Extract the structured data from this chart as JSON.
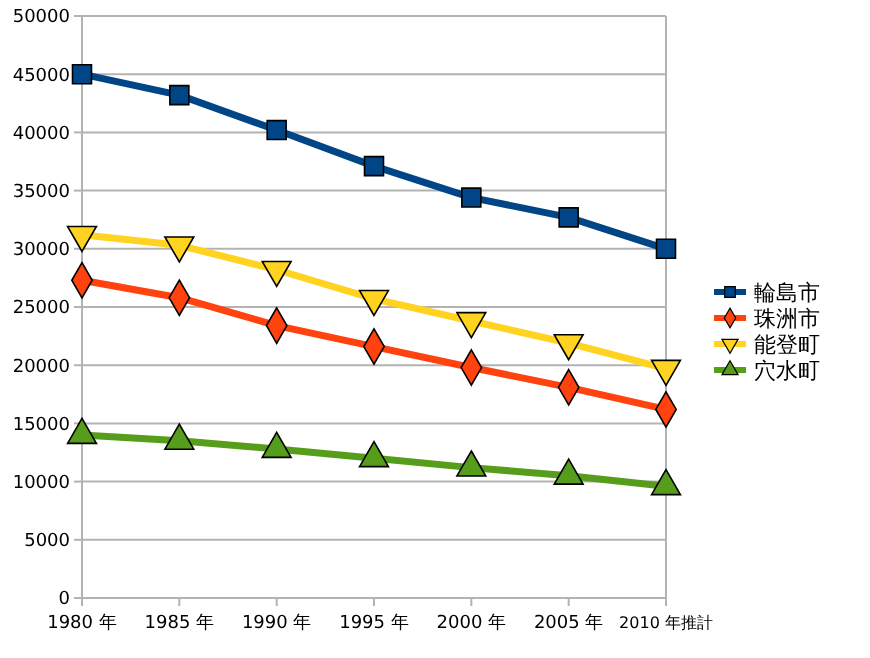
{
  "chart_data": {
    "type": "line",
    "categories": [
      "1980 年",
      "1985 年",
      "1990 年",
      "1995 年",
      "2000 年",
      "2005 年",
      "2010 年推計"
    ],
    "series": [
      {
        "name": "輪島市",
        "color": "#004586",
        "marker": "square",
        "values": [
          45000,
          43200,
          40200,
          37100,
          34400,
          32700,
          30000
        ]
      },
      {
        "name": "珠洲市",
        "color": "#ff420e",
        "marker": "diamond",
        "values": [
          27300,
          25800,
          23400,
          21600,
          19800,
          18100,
          16200
        ]
      },
      {
        "name": "能登町",
        "color": "#ffd320",
        "marker": "triangle-down",
        "values": [
          31200,
          30300,
          28200,
          25700,
          23800,
          21900,
          19700
        ]
      },
      {
        "name": "穴水町",
        "color": "#579d1c",
        "marker": "triangle",
        "values": [
          14000,
          13500,
          12800,
          12000,
          11200,
          10500,
          9600
        ]
      }
    ],
    "ylim": [
      0,
      50000
    ],
    "yticks": [
      0,
      5000,
      10000,
      15000,
      20000,
      25000,
      30000,
      35000,
      40000,
      45000,
      50000
    ],
    "grid": "y",
    "legend": "right"
  }
}
